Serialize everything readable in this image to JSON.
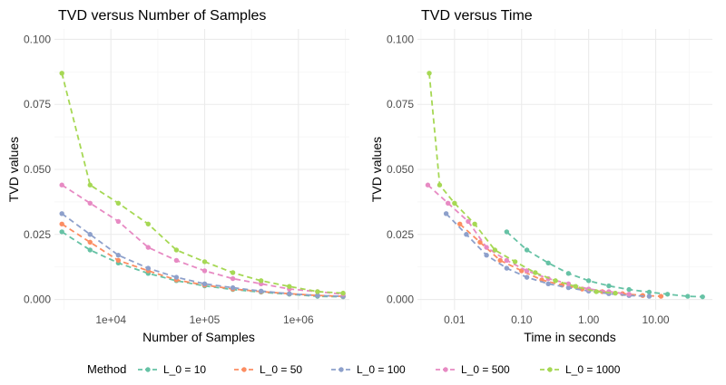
{
  "chart_data": [
    {
      "type": "line",
      "title": "TVD versus Number of Samples",
      "xlabel": "Number of Samples",
      "ylabel": "TVD values",
      "xscale": "log10",
      "xlim": [
        2500,
        3500000
      ],
      "ylim": [
        -0.004,
        0.104
      ],
      "xticks": [
        10000,
        100000,
        1000000
      ],
      "xtick_labels": [
        "1e+04",
        "1e+05",
        "1e+06"
      ],
      "yticks": [
        0,
        0.025,
        0.05,
        0.075,
        0.1
      ],
      "ytick_labels": [
        "0.000",
        "0.025",
        "0.050",
        "0.075",
        "0.100"
      ],
      "grid": true,
      "series": [
        {
          "name": "L_0 = 10",
          "color": "#66c2a5",
          "x": [
            3000,
            6000,
            12000,
            25000,
            50000,
            100000,
            200000,
            400000,
            800000,
            1600000,
            3000000
          ],
          "y": [
            0.026,
            0.019,
            0.014,
            0.01,
            0.0072,
            0.0052,
            0.0038,
            0.0028,
            0.002,
            0.0012,
            0.001
          ]
        },
        {
          "name": "L_0 = 50",
          "color": "#fc8d62",
          "x": [
            3000,
            6000,
            12000,
            25000,
            50000,
            100000,
            200000,
            400000,
            800000,
            1600000,
            3000000
          ],
          "y": [
            0.029,
            0.022,
            0.015,
            0.011,
            0.0075,
            0.0055,
            0.004,
            0.003,
            0.0022,
            0.0015,
            0.0012
          ]
        },
        {
          "name": "L_0 = 100",
          "color": "#8da0cb",
          "x": [
            3000,
            6000,
            12000,
            25000,
            50000,
            100000,
            200000,
            400000,
            800000,
            1600000,
            3000000
          ],
          "y": [
            0.033,
            0.025,
            0.017,
            0.012,
            0.0085,
            0.006,
            0.0045,
            0.0032,
            0.0022,
            0.0015,
            0.0012
          ]
        },
        {
          "name": "L_0 = 500",
          "color": "#e78ac3",
          "x": [
            3000,
            6000,
            12000,
            25000,
            50000,
            100000,
            200000,
            400000,
            800000,
            1600000,
            3000000
          ],
          "y": [
            0.044,
            0.037,
            0.03,
            0.02,
            0.015,
            0.011,
            0.008,
            0.006,
            0.004,
            0.003,
            0.002
          ]
        },
        {
          "name": "L_0 = 1000",
          "color": "#a6d854",
          "x": [
            3000,
            6000,
            12000,
            25000,
            50000,
            100000,
            200000,
            400000,
            800000,
            1600000,
            3000000
          ],
          "y": [
            0.087,
            0.044,
            0.037,
            0.029,
            0.019,
            0.0145,
            0.0103,
            0.0072,
            0.005,
            0.003,
            0.0024
          ]
        }
      ]
    },
    {
      "type": "line",
      "title": "TVD versus Time",
      "xlabel": "Time in seconds",
      "ylabel": "TVD values",
      "xscale": "log10",
      "xlim": [
        0.0028,
        70
      ],
      "ylim": [
        -0.004,
        0.104
      ],
      "xticks": [
        0.01,
        0.1,
        1,
        10
      ],
      "xtick_labels": [
        "0.01",
        "0.10",
        "1.00",
        "10.00"
      ],
      "yticks": [
        0,
        0.025,
        0.05,
        0.075,
        0.1
      ],
      "ytick_labels": [
        "0.000",
        "0.025",
        "0.050",
        "0.075",
        "0.100"
      ],
      "grid": true,
      "series": [
        {
          "name": "L_0 = 10",
          "color": "#66c2a5",
          "x": [
            0.06,
            0.12,
            0.25,
            0.5,
            1.0,
            2.0,
            4.0,
            8.0,
            15,
            30,
            50
          ],
          "y": [
            0.026,
            0.019,
            0.014,
            0.01,
            0.0072,
            0.0052,
            0.0038,
            0.0028,
            0.002,
            0.0012,
            0.001
          ]
        },
        {
          "name": "L_0 = 50",
          "color": "#fc8d62",
          "x": [
            0.012,
            0.024,
            0.048,
            0.1,
            0.2,
            0.4,
            0.8,
            1.6,
            3.2,
            6.4,
            12
          ],
          "y": [
            0.029,
            0.022,
            0.015,
            0.011,
            0.0075,
            0.0055,
            0.004,
            0.003,
            0.0022,
            0.0015,
            0.0012
          ]
        },
        {
          "name": "L_0 = 100",
          "color": "#8da0cb",
          "x": [
            0.0075,
            0.015,
            0.03,
            0.06,
            0.12,
            0.25,
            0.5,
            1.0,
            2.0,
            4.0,
            8.0
          ],
          "y": [
            0.033,
            0.025,
            0.017,
            0.012,
            0.0085,
            0.006,
            0.0045,
            0.0032,
            0.0022,
            0.0015,
            0.0012
          ]
        },
        {
          "name": "L_0 = 500",
          "color": "#e78ac3",
          "x": [
            0.004,
            0.008,
            0.016,
            0.03,
            0.06,
            0.12,
            0.25,
            0.5,
            1.0,
            2.0,
            4.0
          ],
          "y": [
            0.044,
            0.037,
            0.03,
            0.02,
            0.015,
            0.011,
            0.008,
            0.006,
            0.004,
            0.003,
            0.002
          ]
        },
        {
          "name": "L_0 = 1000",
          "color": "#a6d854",
          "x": [
            0.0042,
            0.006,
            0.01,
            0.02,
            0.04,
            0.08,
            0.16,
            0.32,
            0.64,
            1.3,
            2.5
          ],
          "y": [
            0.087,
            0.044,
            0.037,
            0.029,
            0.019,
            0.0145,
            0.0103,
            0.0072,
            0.005,
            0.003,
            0.0024
          ]
        }
      ]
    }
  ],
  "legend": {
    "title": "Method",
    "position": "bottom",
    "items": [
      {
        "label": "L_0 = 10",
        "color": "#66c2a5"
      },
      {
        "label": "L_0 = 50",
        "color": "#fc8d62"
      },
      {
        "label": "L_0 = 100",
        "color": "#8da0cb"
      },
      {
        "label": "L_0 = 500",
        "color": "#e78ac3"
      },
      {
        "label": "L_0 = 1000",
        "color": "#a6d854"
      }
    ]
  },
  "style": {
    "grid_major": "#ebebeb",
    "grid_minor": "#f5f5f5",
    "tick_text": "#4d4d4d"
  }
}
